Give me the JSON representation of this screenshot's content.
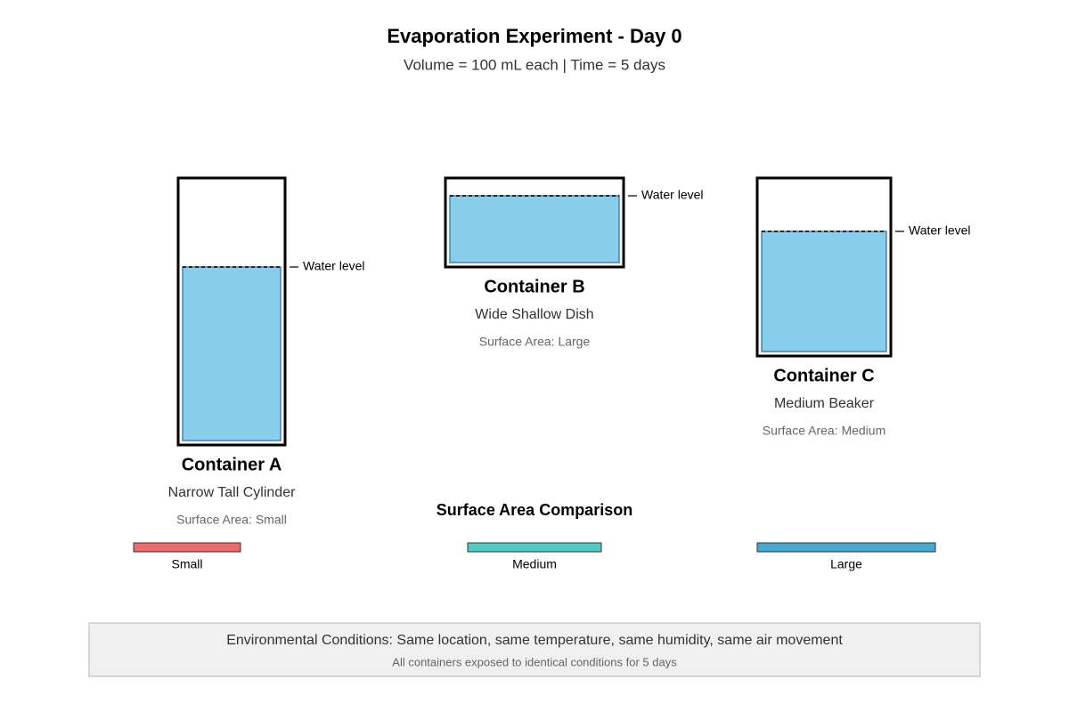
{
  "header": {
    "title": "Evaporation Experiment - Day 0",
    "subtitle": "Volume = 100 mL each | Time = 5 days"
  },
  "containers": [
    {
      "name": "Container A",
      "shape": "Narrow Tall Cylinder",
      "surface_area": "Surface Area: Small",
      "level_label": "Water level"
    },
    {
      "name": "Container B",
      "shape": "Wide Shallow Dish",
      "surface_area": "Surface Area: Large",
      "level_label": "Water level"
    },
    {
      "name": "Container C",
      "shape": "Medium Beaker",
      "surface_area": "Surface Area: Medium",
      "level_label": "Water level"
    }
  ],
  "comparison": {
    "title": "Surface Area Comparison",
    "labels": [
      "Small",
      "Medium",
      "Large"
    ]
  },
  "footer": {
    "conditions": "Environmental Conditions: Same location, same temperature, same humidity, same air movement",
    "note": "All containers exposed to identical conditions for 5 days"
  }
}
